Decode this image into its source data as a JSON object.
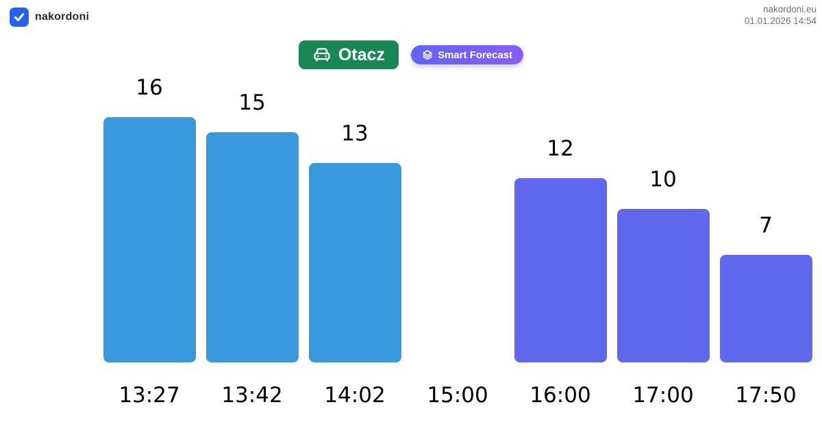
{
  "header": {
    "brand": "nakordoni",
    "site": "nakordoni.eu",
    "timestamp": "01.01.2026 14:54"
  },
  "controls": {
    "otacz_label": "Otacz",
    "forecast_label": "Smart Forecast"
  },
  "icons": {
    "brand_checkbox": "checkmark-icon",
    "otacz": "car-front-icon",
    "forecast": "layers-icon"
  },
  "colors": {
    "checkbox_blue": "#2563eb",
    "brand_text": "#1f2937",
    "meta_gray": "#6b7280",
    "otacz_green": "#198754",
    "bar_actual": "#3799dc",
    "bar_forecast": "#6268ee",
    "forecast_gradient_start": "#6165ef",
    "forecast_gradient_end": "#8a5cf6",
    "chart_text": "#000000"
  },
  "chart_data": {
    "type": "bar",
    "categories": [
      "13:27",
      "13:42",
      "14:02",
      "15:00",
      "16:00",
      "17:00",
      "17:50"
    ],
    "values": [
      16,
      15,
      13,
      0,
      12,
      10,
      7
    ],
    "value_labels": [
      "16",
      "15",
      "13",
      "",
      "12",
      "10",
      "7"
    ],
    "bar_kinds": [
      "actual",
      "actual",
      "actual",
      "none",
      "forecast",
      "forecast",
      "forecast"
    ],
    "series": [
      {
        "name": "actual",
        "categories": [
          "13:27",
          "13:42",
          "14:02"
        ],
        "values": [
          16,
          15,
          13
        ]
      },
      {
        "name": "forecast",
        "categories": [
          "16:00",
          "17:00",
          "17:50"
        ],
        "values": [
          12,
          10,
          7
        ]
      }
    ],
    "title": "",
    "xlabel": "",
    "ylabel": "",
    "ylim": [
      0,
      16
    ],
    "grid": false,
    "legend": "none",
    "value_labels_shown": true
  }
}
